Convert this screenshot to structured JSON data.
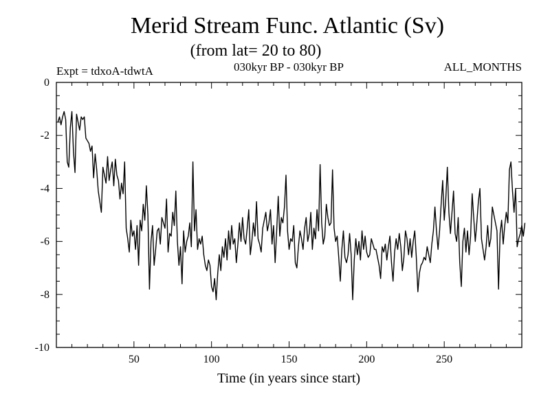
{
  "chart_data": {
    "type": "line",
    "title": "Merid Stream Func. Atlantic (Sv)",
    "subtitle": "(from lat= 20 to 80)",
    "annotations": {
      "left": "Expt = tdxoA-tdwtA",
      "center": "030kyr BP - 030kyr BP",
      "right": "ALL_MONTHS"
    },
    "xlabel": "Time (in years since start)",
    "ylabel": "",
    "xlim": [
      0,
      300
    ],
    "ylim": [
      -10,
      0
    ],
    "x_ticks": [
      50,
      100,
      150,
      200,
      250
    ],
    "y_ticks": [
      0,
      -2,
      -4,
      -6,
      -8,
      -10
    ],
    "grid": false,
    "series": [
      {
        "color": "#000000",
        "x_start": 1,
        "x_step": 1,
        "values": [
          -1.5,
          -1.3,
          -1.6,
          -1.3,
          -1.1,
          -1.4,
          -3.0,
          -3.2,
          -1.7,
          -1.1,
          -2.6,
          -3.4,
          -1.2,
          -1.5,
          -1.8,
          -1.3,
          -1.4,
          -1.3,
          -2.1,
          -2.2,
          -2.3,
          -2.6,
          -2.4,
          -3.6,
          -2.7,
          -3.3,
          -4.1,
          -4.5,
          -4.9,
          -3.2,
          -3.5,
          -3.8,
          -2.8,
          -3.7,
          -3.3,
          -3.0,
          -3.9,
          -2.9,
          -3.5,
          -3.7,
          -4.4,
          -3.8,
          -4.2,
          -3.0,
          -5.5,
          -5.9,
          -6.4,
          -5.2,
          -5.8,
          -5.6,
          -6.3,
          -5.4,
          -6.9,
          -5.2,
          -5.6,
          -4.6,
          -5.2,
          -3.9,
          -5.0,
          -7.8,
          -6.0,
          -5.4,
          -6.9,
          -6.3,
          -5.6,
          -5.5,
          -6.1,
          -5.1,
          -5.3,
          -5.5,
          -4.4,
          -6.4,
          -5.7,
          -5.8,
          -4.9,
          -5.4,
          -4.1,
          -6.0,
          -6.9,
          -6.2,
          -7.6,
          -5.6,
          -6.4,
          -6.0,
          -5.8,
          -5.3,
          -6.2,
          -3.0,
          -5.6,
          -4.8,
          -6.3,
          -5.9,
          -6.1,
          -5.8,
          -6.5,
          -6.9,
          -7.1,
          -6.7,
          -6.9,
          -7.7,
          -7.9,
          -7.4,
          -8.2,
          -7.2,
          -6.5,
          -7.1,
          -6.2,
          -6.6,
          -5.9,
          -6.7,
          -5.6,
          -6.3,
          -5.4,
          -6.1,
          -5.9,
          -6.8,
          -6.1,
          -5.3,
          -6.0,
          -5.1,
          -5.9,
          -6.1,
          -5.5,
          -4.8,
          -6.5,
          -6.0,
          -5.3,
          -5.8,
          -4.5,
          -5.9,
          -6.1,
          -6.4,
          -5.5,
          -5.2,
          -4.9,
          -5.6,
          -5.3,
          -4.8,
          -6.1,
          -5.4,
          -6.8,
          -5.6,
          -4.3,
          -5.8,
          -5.1,
          -5.3,
          -4.7,
          -3.5,
          -5.6,
          -6.3,
          -5.9,
          -6.0,
          -5.4,
          -6.8,
          -7.0,
          -6.2,
          -5.6,
          -5.9,
          -6.3,
          -5.5,
          -5.1,
          -6.0,
          -5.7,
          -4.9,
          -6.3,
          -5.5,
          -5.9,
          -4.8,
          -5.6,
          -3.1,
          -5.3,
          -6.1,
          -5.8,
          -4.6,
          -5.1,
          -5.4,
          -5.3,
          -3.3,
          -5.5,
          -6.0,
          -5.8,
          -6.6,
          -7.5,
          -6.3,
          -5.6,
          -6.6,
          -6.8,
          -6.5,
          -5.7,
          -6.5,
          -8.2,
          -6.7,
          -5.9,
          -6.5,
          -6.0,
          -6.7,
          -5.6,
          -6.3,
          -5.8,
          -6.4,
          -6.6,
          -6.5,
          -5.9,
          -6.1,
          -6.3,
          -6.3,
          -6.6,
          -6.9,
          -7.4,
          -6.2,
          -6.4,
          -6.1,
          -6.7,
          -6.2,
          -5.8,
          -6.8,
          -7.5,
          -6.4,
          -5.9,
          -6.3,
          -5.7,
          -6.2,
          -7.1,
          -6.6,
          -5.6,
          -5.9,
          -6.5,
          -5.9,
          -6.6,
          -6.0,
          -5.6,
          -6.6,
          -7.9,
          -7.2,
          -6.9,
          -6.8,
          -6.6,
          -6.7,
          -6.2,
          -6.5,
          -6.8,
          -6.1,
          -5.6,
          -4.7,
          -5.6,
          -6.3,
          -5.6,
          -4.6,
          -3.7,
          -5.2,
          -4.4,
          -3.2,
          -4.9,
          -5.7,
          -4.9,
          -4.1,
          -5.7,
          -6.0,
          -5.1,
          -6.8,
          -7.7,
          -6.0,
          -5.5,
          -6.4,
          -5.6,
          -6.5,
          -5.8,
          -4.2,
          -5.1,
          -6.0,
          -5.3,
          -4.5,
          -4.0,
          -5.9,
          -6.3,
          -6.7,
          -6.2,
          -5.4,
          -6.2,
          -5.9,
          -4.7,
          -5.0,
          -5.3,
          -5.6,
          -7.8,
          -5.7,
          -5.2,
          -6.1,
          -5.4,
          -4.9,
          -5.3,
          -3.3,
          -3.0,
          -4.1,
          -4.9,
          -4.0,
          -6.2,
          -5.9,
          -5.7,
          -5.4,
          -5.8,
          -5.3
        ]
      }
    ]
  }
}
